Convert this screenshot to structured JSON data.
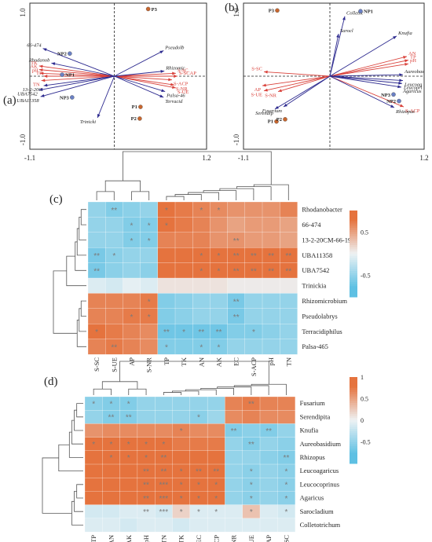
{
  "chart_data": [
    {
      "panel": "(a)",
      "type": "scatter",
      "xlim": [
        -1.1,
        1.2
      ],
      "ylim": [
        -1.0,
        1.0
      ],
      "x_tick_labels": [
        "-1.1",
        "1.2"
      ],
      "y_tick_labels": [
        "1.0",
        "-1.0"
      ],
      "points": [
        {
          "label": "P3",
          "x": 0.44,
          "y": 0.92,
          "color": "#c8662e"
        },
        {
          "label": "NP2",
          "x": -0.58,
          "y": 0.31,
          "color": "#6a80c4"
        },
        {
          "label": "NP1",
          "x": -0.68,
          "y": 0.02,
          "color": "#6a80c4"
        },
        {
          "label": "NP3",
          "x": -0.55,
          "y": -0.29,
          "color": "#6a80c4"
        },
        {
          "label": "P1",
          "x": 0.34,
          "y": -0.42,
          "color": "#c8662e"
        },
        {
          "label": "P2",
          "x": 0.33,
          "y": -0.58,
          "color": "#c8662e"
        }
      ],
      "species_arrows": [
        {
          "label": "66-474",
          "x": -0.93,
          "y": 0.38
        },
        {
          "label": "Rhodanob",
          "x": -0.82,
          "y": 0.18
        },
        {
          "label": "13-2-20C",
          "x": -0.92,
          "y": -0.13
        },
        {
          "label": "UBA7542",
          "x": -0.98,
          "y": -0.19
        },
        {
          "label": "UBA11358",
          "x": -0.96,
          "y": -0.28
        },
        {
          "label": "Trinicki",
          "x": -0.22,
          "y": -0.57
        },
        {
          "label": "Pseudolb",
          "x": 0.64,
          "y": 0.35
        },
        {
          "label": "Rhizomic",
          "x": 0.65,
          "y": 0.07
        },
        {
          "label": "Terracid",
          "x": 0.64,
          "y": -0.29
        },
        {
          "label": "Palsa-46",
          "x": 0.66,
          "y": -0.21
        }
      ],
      "env_arrows": [
        {
          "label": "TK",
          "x": -0.98,
          "y": 0.14
        },
        {
          "label": "AK",
          "x": -0.98,
          "y": 0.09
        },
        {
          "label": "pH",
          "x": -0.97,
          "y": 0.04
        },
        {
          "label": "TP",
          "x": -0.92,
          "y": 0.0
        },
        {
          "label": "TN",
          "x": -0.95,
          "y": -0.06
        },
        {
          "label": "S-SC",
          "x": 0.8,
          "y": 0.04
        },
        {
          "label": "S-ACP",
          "x": 0.75,
          "y": -0.05
        },
        {
          "label": "S-NR",
          "x": 0.78,
          "y": -0.12
        },
        {
          "label": "S-UE",
          "x": 0.8,
          "y": -0.16
        },
        {
          "label": "S-SCAP",
          "x": 0.82,
          "y": 0.0
        }
      ]
    },
    {
      "panel": "(b)",
      "type": "scatter",
      "xlim": [
        -1.1,
        1.2
      ],
      "ylim": [
        -1.0,
        1.0
      ],
      "x_tick_labels": [
        "-1.1",
        "1.2"
      ],
      "y_tick_labels": [
        "1.0",
        "-1.0"
      ],
      "points": [
        {
          "label": "P3",
          "x": -0.67,
          "y": 0.9,
          "color": "#c8662e"
        },
        {
          "label": "NP1",
          "x": 0.39,
          "y": 0.89,
          "color": "#6a80c4"
        },
        {
          "label": "NP3",
          "x": 0.81,
          "y": -0.25,
          "color": "#6a80c4"
        },
        {
          "label": "NP2",
          "x": 0.88,
          "y": -0.34,
          "color": "#6a80c4"
        },
        {
          "label": "P1",
          "x": -0.68,
          "y": -0.62,
          "color": "#c8662e"
        },
        {
          "label": "P2",
          "x": -0.57,
          "y": -0.59,
          "color": "#c8662e"
        }
      ],
      "species_arrows": [
        {
          "label": "Colletot",
          "x": 0.19,
          "y": 0.82
        },
        {
          "label": "Sarocl",
          "x": 0.11,
          "y": 0.58
        },
        {
          "label": "Knufia",
          "x": 0.85,
          "y": 0.55
        },
        {
          "label": "Aureobas",
          "x": 0.93,
          "y": 0.02
        },
        {
          "label": "Leucoag",
          "x": 0.93,
          "y": -0.06
        },
        {
          "label": "Leucopri",
          "x": 0.92,
          "y": -0.1
        },
        {
          "label": "Agaricus",
          "x": 0.91,
          "y": -0.15
        },
        {
          "label": "Rhizopus",
          "x": 0.82,
          "y": -0.43
        },
        {
          "label": "Serendip",
          "x": -0.7,
          "y": -0.45
        },
        {
          "label": "Fusarium",
          "x": -0.59,
          "y": -0.42
        }
      ],
      "env_arrows": [
        {
          "label": "AN",
          "x": 0.98,
          "y": 0.27
        },
        {
          "label": "TP",
          "x": 1.0,
          "y": 0.22
        },
        {
          "label": "pH",
          "x": 1.0,
          "y": 0.17
        },
        {
          "label": "S-SC",
          "x": -0.84,
          "y": 0.06
        },
        {
          "label": "AP",
          "x": -0.86,
          "y": -0.13
        },
        {
          "label": "S-UE",
          "x": -0.84,
          "y": -0.2
        },
        {
          "label": "S-NR",
          "x": -0.66,
          "y": -0.21
        },
        {
          "label": "S-ACP",
          "x": 0.94,
          "y": -0.42
        }
      ]
    },
    {
      "panel": "(c)",
      "type": "heatmap",
      "columns": [
        "S-SC",
        "S-UE",
        "AP",
        "S-NR",
        "TP",
        "TK",
        "AN",
        "AK",
        "EC",
        "S-ACP",
        "pH",
        "TN"
      ],
      "rows": [
        "Rhodanobacter",
        "66-474",
        "13-2-20CM-66-19",
        "UBA11358",
        "UBA7542",
        "Trinickia",
        "Rhizomicrobium",
        "Pseudolabrys",
        "Terracidiphilus",
        "Palsa-465"
      ],
      "values": [
        [
          -0.5,
          -0.6,
          -0.55,
          -0.5,
          0.8,
          0.75,
          0.7,
          0.65,
          0.6,
          0.6,
          0.6,
          0.7
        ],
        [
          -0.5,
          -0.5,
          -0.6,
          -0.6,
          0.8,
          0.75,
          0.7,
          0.6,
          0.5,
          0.55,
          0.55,
          0.5
        ],
        [
          -0.5,
          -0.5,
          -0.6,
          -0.6,
          0.7,
          0.7,
          0.7,
          0.6,
          0.6,
          0.55,
          0.55,
          0.5
        ],
        [
          -0.65,
          -0.55,
          -0.5,
          -0.5,
          0.8,
          0.8,
          0.8,
          0.8,
          0.8,
          0.8,
          0.8,
          0.8
        ],
        [
          -0.65,
          -0.55,
          -0.5,
          -0.55,
          0.8,
          0.8,
          0.8,
          0.8,
          0.8,
          0.8,
          0.8,
          0.8
        ],
        [
          -0.1,
          -0.15,
          -0.05,
          -0.1,
          0.1,
          0.1,
          0.1,
          0.1,
          0.05,
          0.05,
          0.05,
          0.05
        ],
        [
          0.7,
          0.7,
          0.7,
          0.75,
          -0.6,
          -0.55,
          -0.5,
          -0.5,
          -0.65,
          -0.5,
          -0.5,
          -0.5
        ],
        [
          0.7,
          0.7,
          0.75,
          0.75,
          -0.6,
          -0.55,
          -0.5,
          -0.5,
          -0.65,
          -0.5,
          -0.5,
          -0.5
        ],
        [
          0.8,
          0.75,
          0.7,
          0.65,
          -0.7,
          -0.7,
          -0.7,
          -0.7,
          -0.6,
          -0.6,
          -0.55,
          -0.5
        ],
        [
          0.7,
          0.75,
          0.7,
          0.65,
          -0.6,
          -0.6,
          -0.6,
          -0.6,
          -0.5,
          -0.5,
          -0.5,
          -0.5
        ]
      ],
      "significance": [
        [
          "",
          "**",
          "",
          "",
          "*",
          "",
          "*",
          "*",
          "",
          "",
          "",
          ""
        ],
        [
          "",
          "",
          "*",
          "*",
          "*",
          "",
          "",
          "",
          "",
          "",
          "",
          ""
        ],
        [
          "",
          "",
          "*",
          "*",
          "",
          "",
          "",
          "",
          "**",
          "",
          "",
          ""
        ],
        [
          "**",
          "*",
          "",
          "",
          "",
          "",
          "*",
          "*",
          "**",
          "**",
          "**",
          "**"
        ],
        [
          "**",
          "",
          "",
          "",
          "",
          "",
          "*",
          "*",
          "**",
          "**",
          "**",
          "**"
        ],
        [
          "",
          "",
          "",
          "",
          "",
          "",
          "",
          "",
          "",
          "",
          "",
          ""
        ],
        [
          "",
          "",
          "",
          "*",
          "",
          "",
          "",
          "",
          "**",
          "",
          "",
          ""
        ],
        [
          "",
          "",
          "*",
          "*",
          "",
          "",
          "",
          "",
          "**",
          "",
          "",
          ""
        ],
        [
          "*",
          "",
          "",
          "",
          "**",
          "*",
          "**",
          "**",
          "",
          "*",
          "",
          ""
        ],
        [
          "",
          "**",
          "",
          "",
          "*",
          "",
          "*",
          "*",
          "",
          "",
          "",
          ""
        ]
      ],
      "colorbar_ticks": [
        "0.5",
        "-0.5"
      ],
      "vmin": -1,
      "vmax": 1
    },
    {
      "panel": "(d)",
      "type": "heatmap",
      "columns": [
        "TP",
        "AN",
        "AK",
        "pH",
        "TN",
        "TK",
        "EC",
        "S-ACP",
        "S-NR",
        "S-UE",
        "AP",
        "S-SC"
      ],
      "rows": [
        "Fusarium",
        "Serendipita",
        "Knufia",
        "Aureobasidium",
        "Rhizopus",
        "Leucoagaricus",
        "Leucocoprinus",
        "Agaricus",
        "Sarocladium",
        "Colletotrichum"
      ],
      "values": [
        [
          -0.55,
          -0.6,
          -0.6,
          -0.5,
          -0.5,
          -0.5,
          -0.5,
          -0.5,
          0.7,
          0.75,
          0.7,
          0.7
        ],
        [
          -0.5,
          -0.6,
          -0.6,
          -0.5,
          -0.5,
          -0.5,
          -0.55,
          -0.45,
          0.65,
          0.7,
          0.65,
          0.65
        ],
        [
          0.6,
          0.65,
          0.65,
          0.65,
          0.65,
          0.7,
          0.65,
          0.65,
          -0.6,
          -0.55,
          -0.6,
          -0.5
        ],
        [
          0.8,
          0.8,
          0.8,
          0.8,
          0.8,
          0.75,
          0.75,
          0.75,
          -0.5,
          -0.6,
          -0.5,
          -0.55
        ],
        [
          0.8,
          0.8,
          0.8,
          0.8,
          0.8,
          0.8,
          0.8,
          0.8,
          -0.5,
          -0.5,
          -0.55,
          -0.6
        ],
        [
          0.85,
          0.85,
          0.85,
          0.85,
          0.85,
          0.85,
          0.85,
          0.8,
          -0.5,
          -0.55,
          -0.5,
          -0.55
        ],
        [
          0.85,
          0.85,
          0.85,
          0.85,
          0.85,
          0.85,
          0.85,
          0.8,
          -0.5,
          -0.55,
          -0.5,
          -0.55
        ],
        [
          0.85,
          0.85,
          0.85,
          0.85,
          0.85,
          0.85,
          0.85,
          0.8,
          -0.5,
          -0.55,
          -0.5,
          -0.55
        ],
        [
          -0.15,
          -0.15,
          -0.1,
          -0.1,
          -0.15,
          0.2,
          -0.1,
          -0.1,
          -0.1,
          0.3,
          -0.1,
          -0.15
        ],
        [
          -0.1,
          -0.1,
          -0.15,
          -0.1,
          -0.1,
          -0.15,
          -0.1,
          -0.1,
          -0.1,
          -0.1,
          -0.1,
          -0.1
        ]
      ],
      "significance": [
        [
          "*",
          "*",
          "*",
          "",
          "",
          "",
          "",
          "",
          "",
          "**",
          "",
          ""
        ],
        [
          "",
          "**",
          "**",
          "",
          "",
          "",
          "*",
          "",
          "",
          "",
          "",
          ""
        ],
        [
          "",
          "",
          "",
          "",
          "",
          "*",
          "",
          "",
          "**",
          "",
          "**",
          ""
        ],
        [
          "*",
          "*",
          "*",
          "*",
          "*",
          "",
          "",
          "",
          "",
          "**",
          "",
          ""
        ],
        [
          "",
          "*",
          "*",
          "*",
          "**",
          "",
          "",
          "",
          "",
          "",
          "",
          "**"
        ],
        [
          "",
          "",
          "",
          "**",
          "**",
          "*",
          "**",
          "**",
          "",
          "*",
          "",
          "*"
        ],
        [
          "",
          "",
          "",
          "**",
          "***",
          "*",
          "*",
          "*",
          "",
          "*",
          "",
          "*"
        ],
        [
          "",
          "",
          "",
          "**",
          "***",
          "*",
          "*",
          "*",
          "",
          "*",
          "",
          "*"
        ],
        [
          "",
          "",
          "",
          "**",
          "***",
          "*",
          "*",
          "*",
          "",
          "*",
          "",
          "*"
        ],
        [
          "",
          "",
          "",
          "",
          "",
          "",
          "",
          "",
          "",
          "",
          "",
          ""
        ]
      ],
      "colorbar_ticks": [
        "1",
        "0.5",
        "0",
        "-0.5"
      ],
      "vmin": -1,
      "vmax": 1
    }
  ],
  "colors": {
    "positive": "#e5733e",
    "negative": "#5ec0e3",
    "neutral": "#eef2f4",
    "species_arrow": "#2d2a8f",
    "env_arrow": "#d9413a",
    "sample_p": "#c8662e",
    "sample_np": "#6a80c4",
    "star": "#7a7a7a"
  }
}
